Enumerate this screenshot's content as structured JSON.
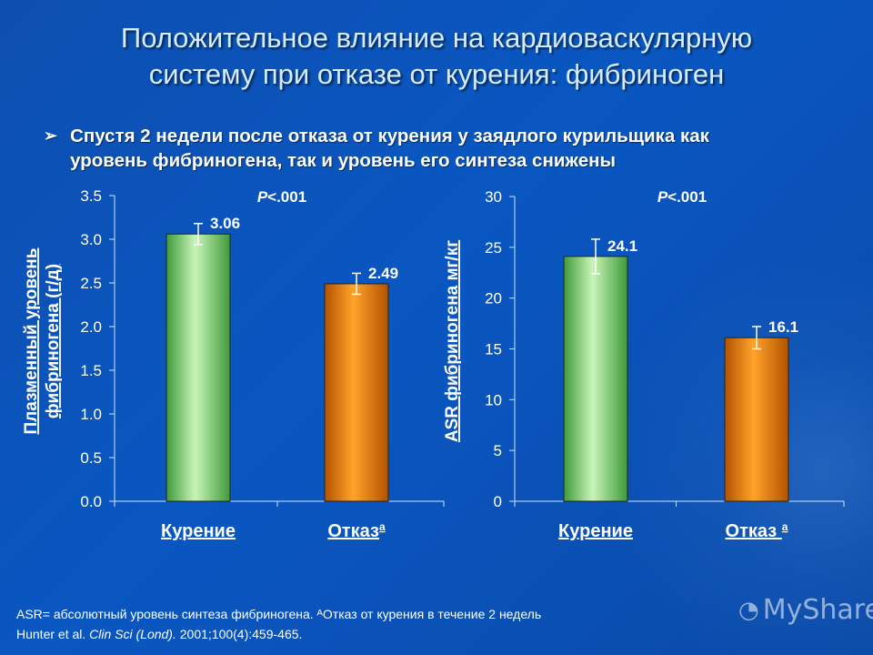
{
  "title": {
    "line1": "Положительное влияние на кардиоваскулярную",
    "line2": "систему при отказе от курения: фибриноген"
  },
  "bullet": {
    "line1": "Спустя  2 недели после отказа от курения у заядлого курильщика как",
    "line2": "уровень фибриногена, так и уровень его синтеза снижены"
  },
  "chart_data": [
    {
      "type": "bar",
      "ylabel": [
        "Плазменный уровень",
        "фибриногена (г/д)"
      ],
      "pvalue": "P<.001",
      "categories": [
        "Курение",
        "Отказ"
      ],
      "category_superscripts": [
        "",
        "a"
      ],
      "values": [
        3.06,
        2.49
      ],
      "value_labels": [
        "3.06",
        "2.49"
      ],
      "error": [
        0.12,
        0.12
      ],
      "ylim": [
        0,
        3.5
      ],
      "ticks": [
        "0.0",
        "0.5",
        "1.0",
        "1.5",
        "2.0",
        "2.5",
        "3.0",
        "3.5"
      ],
      "bar_colors": [
        "#7ee07a",
        "#f08a10"
      ]
    },
    {
      "type": "bar",
      "ylabel": [
        "ASR фибриногена  мг/кг"
      ],
      "pvalue": "P<.001",
      "categories": [
        "Курение",
        "Отказ "
      ],
      "category_superscripts": [
        "",
        "a"
      ],
      "values": [
        24.1,
        16.1
      ],
      "value_labels": [
        "24.1",
        "16.1"
      ],
      "error": [
        1.7,
        1.1
      ],
      "ylim": [
        0,
        30
      ],
      "ticks": [
        "0",
        "5",
        "10",
        "15",
        "20",
        "25",
        "30"
      ],
      "bar_colors": [
        "#7ee07a",
        "#f08a10"
      ]
    }
  ],
  "footer": {
    "line1": "ASR= абсолютный уровень синтеза фибриногена. ᴬОтказ от курения в течение 2 недель",
    "line2_plain": "Hunter et al. ",
    "line2_italic": "Clin Sci (Lond).",
    "line2_rest": " 2001;100(4):459-465."
  },
  "watermark": "MyShared"
}
